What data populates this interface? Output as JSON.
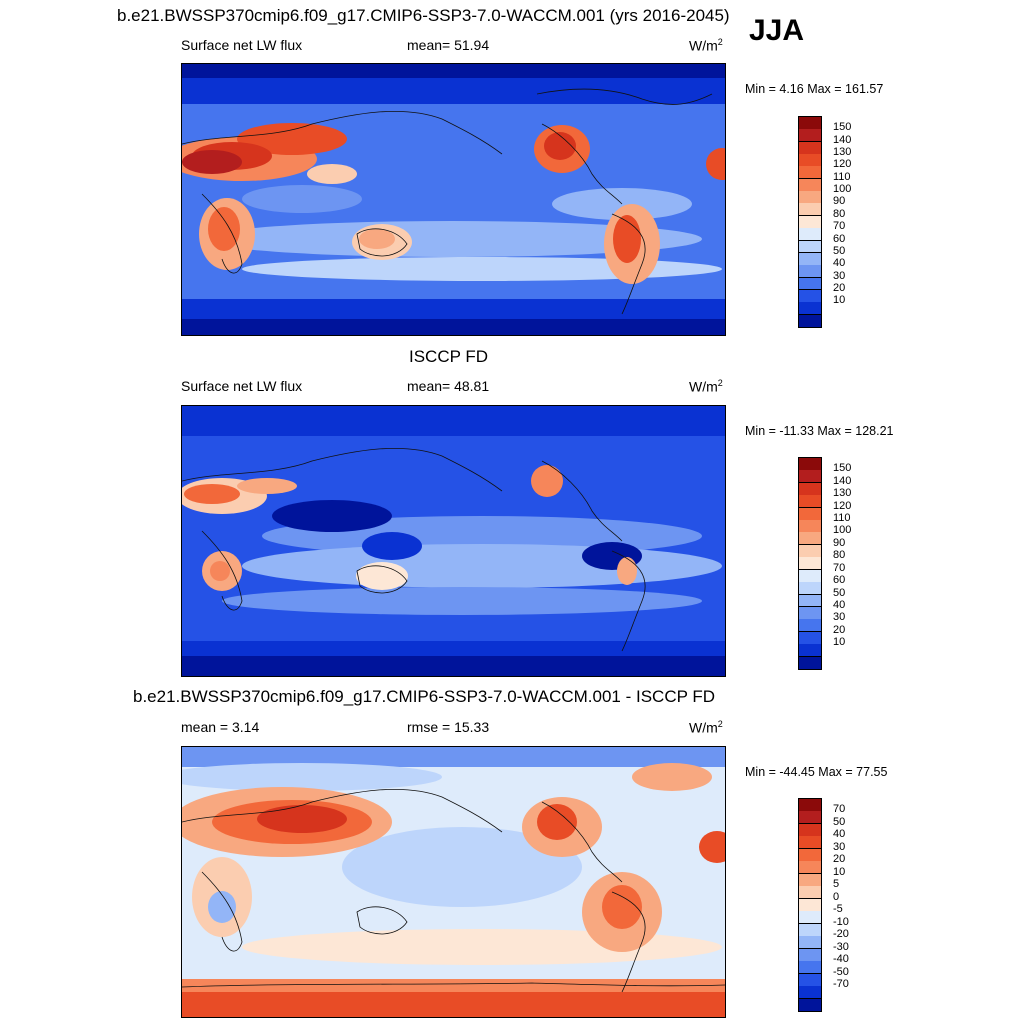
{
  "header": {
    "title": "b.e21.BWSSP370cmip6.f09_g17.CMIP6-SSP3-7.0-WACCM.001 (yrs 2016-2045)",
    "season": "JJA"
  },
  "panels": [
    {
      "id": "model",
      "title": "",
      "left_label": "Surface net LW flux",
      "center_label": "mean=  51.94",
      "units": "W/m",
      "units_sup": "2",
      "minmax": "Min =   4.16 Max = 161.57",
      "colorbar": {
        "labels": [
          "150",
          "140",
          "130",
          "120",
          "110",
          "100",
          "90",
          "80",
          "70",
          "60",
          "50",
          "40",
          "30",
          "20",
          "10"
        ],
        "colors": [
          "#8b0a0a",
          "#b31e1e",
          "#d6341d",
          "#e84c26",
          "#f2683a",
          "#f6865a",
          "#f8a880",
          "#fbcdb0",
          "#fde7d6",
          "#deebfb",
          "#bdd5fb",
          "#93b5f7",
          "#6d95f2",
          "#4675ee",
          "#2552e6",
          "#0a32d2",
          "#00149b"
        ]
      }
    },
    {
      "id": "obs",
      "title": "ISCCP FD",
      "left_label": "Surface net LW flux",
      "center_label": "mean=  48.81",
      "units": "W/m",
      "units_sup": "2",
      "minmax": "Min = -11.33 Max = 128.21",
      "colorbar": {
        "labels": [
          "150",
          "140",
          "130",
          "120",
          "110",
          "100",
          "90",
          "80",
          "70",
          "60",
          "50",
          "40",
          "30",
          "20",
          "10"
        ],
        "colors": [
          "#8b0a0a",
          "#b31e1e",
          "#d6341d",
          "#e84c26",
          "#f2683a",
          "#f6865a",
          "#f8a880",
          "#fbcdb0",
          "#fde7d6",
          "#deebfb",
          "#bdd5fb",
          "#93b5f7",
          "#6d95f2",
          "#4675ee",
          "#2552e6",
          "#0a32d2",
          "#00149b"
        ]
      }
    },
    {
      "id": "diff",
      "title": "b.e21.BWSSP370cmip6.f09_g17.CMIP6-SSP3-7.0-WACCM.001 - ISCCP FD",
      "left_label": "mean =   3.14",
      "center_label": "rmse =  15.33",
      "units": "W/m",
      "units_sup": "2",
      "minmax": "Min = -44.45 Max =  77.55",
      "colorbar": {
        "labels": [
          "70",
          "50",
          "40",
          "30",
          "20",
          "10",
          "5",
          "0",
          "-5",
          "-10",
          "-20",
          "-30",
          "-40",
          "-50",
          "-70"
        ],
        "colors": [
          "#8b0a0a",
          "#b31e1e",
          "#d6341d",
          "#e84c26",
          "#f2683a",
          "#f6865a",
          "#f8a880",
          "#fbcdb0",
          "#fde7d6",
          "#deebfb",
          "#bdd5fb",
          "#93b5f7",
          "#6d95f2",
          "#4675ee",
          "#2552e6",
          "#0a32d2",
          "#00149b"
        ]
      }
    }
  ]
}
